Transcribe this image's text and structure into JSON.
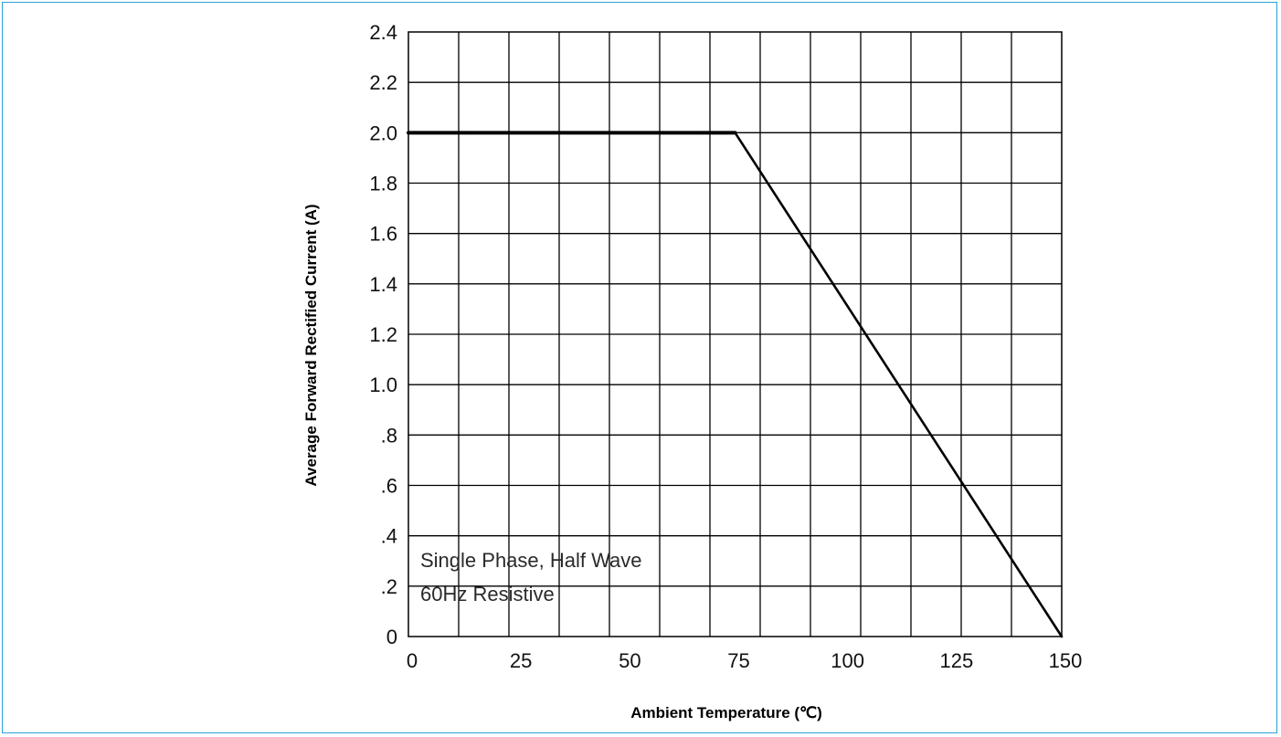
{
  "chart_data": {
    "type": "line",
    "title": "",
    "xlabel": "Ambient Temperature (℃)",
    "ylabel": "Average Forward Rectified Current (A)",
    "xlim": [
      0,
      150
    ],
    "ylim": [
      0,
      2.4
    ],
    "x_ticks": [
      "0",
      "25",
      "50",
      "75",
      "100",
      "125",
      "150"
    ],
    "x_tick_values": [
      0,
      25,
      50,
      75,
      100,
      125,
      150
    ],
    "y_ticks": [
      "0",
      ".2",
      ".4",
      ".6",
      ".8",
      "1.0",
      "1.2",
      "1.4",
      "1.6",
      "1.8",
      "2.0",
      "2.2",
      "2.4"
    ],
    "y_tick_values": [
      0,
      0.2,
      0.4,
      0.6,
      0.8,
      1.0,
      1.2,
      1.4,
      1.6,
      1.8,
      2.0,
      2.2,
      2.4
    ],
    "grid": true,
    "series": [
      {
        "x": [
          0,
          75,
          150
        ],
        "y": [
          2.0,
          2.0,
          0
        ]
      }
    ],
    "annotations": [
      "Single Phase, Half Wave",
      "60Hz Resistive"
    ]
  }
}
